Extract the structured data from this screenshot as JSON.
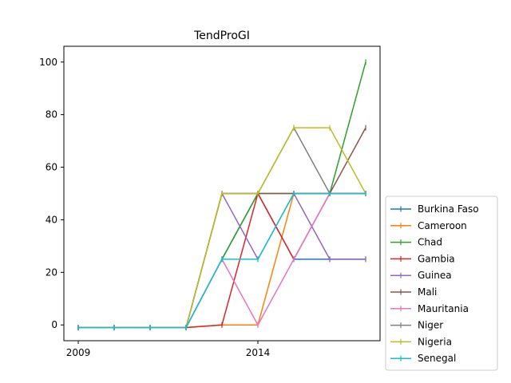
{
  "chart_data": {
    "type": "line",
    "title": "TendProGI",
    "xlabel": "",
    "ylabel": "",
    "x": [
      2009,
      2010,
      2011,
      2012,
      2013,
      2014,
      2015,
      2016,
      2017
    ],
    "xlim": [
      2008.6,
      2017.4
    ],
    "ylim": [
      -6,
      106
    ],
    "xticks": [
      2009,
      2014
    ],
    "yticks": [
      0,
      20,
      40,
      60,
      80,
      100
    ],
    "grid": false,
    "legend_position": "lower-right-outside",
    "series": [
      {
        "name": "Burkina Faso",
        "color": "#1f77b4",
        "values": [
          -1,
          -1,
          -1,
          -1,
          25,
          50,
          25,
          25,
          25
        ]
      },
      {
        "name": "Cameroon",
        "color": "#ff7f0e",
        "values": [
          -1,
          -1,
          -1,
          -1,
          0,
          0,
          50,
          50,
          50
        ]
      },
      {
        "name": "Chad",
        "color": "#2ca02c",
        "values": [
          -1,
          -1,
          -1,
          -1,
          25,
          50,
          50,
          50,
          100
        ]
      },
      {
        "name": "Gambia",
        "color": "#d62728",
        "values": [
          -1,
          -1,
          -1,
          -1,
          0,
          50,
          25,
          50,
          50
        ]
      },
      {
        "name": "Guinea",
        "color": "#9467bd",
        "values": [
          -1,
          -1,
          -1,
          -1,
          50,
          25,
          50,
          25,
          25
        ]
      },
      {
        "name": "Mali",
        "color": "#8c564b",
        "values": [
          -1,
          -1,
          -1,
          -1,
          50,
          50,
          50,
          50,
          75
        ]
      },
      {
        "name": "Mauritania",
        "color": "#e377c2",
        "values": [
          -1,
          -1,
          -1,
          -1,
          25,
          0,
          25,
          50,
          50
        ]
      },
      {
        "name": "Niger",
        "color": "#7f7f7f",
        "values": [
          -1,
          -1,
          -1,
          -1,
          50,
          50,
          75,
          50,
          50
        ]
      },
      {
        "name": "Nigeria",
        "color": "#bcbd22",
        "values": [
          -1,
          -1,
          -1,
          -1,
          50,
          50,
          75,
          75,
          50
        ]
      },
      {
        "name": "Senegal",
        "color": "#17becf",
        "values": [
          -1,
          -1,
          -1,
          -1,
          25,
          25,
          50,
          50,
          50
        ]
      }
    ]
  }
}
